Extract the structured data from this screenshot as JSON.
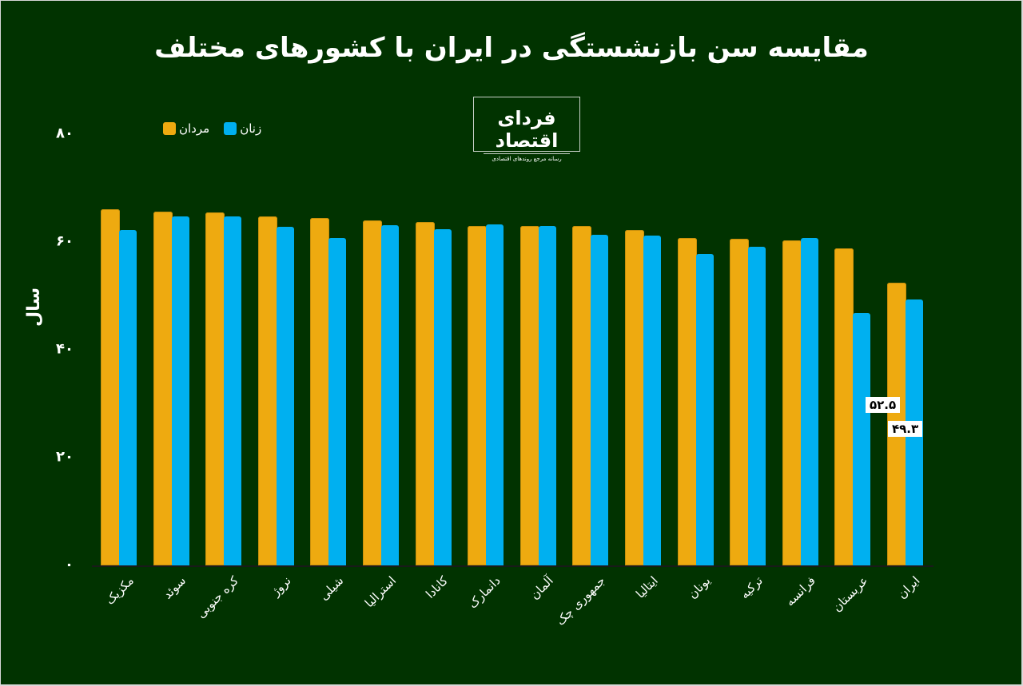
{
  "title": "مقایسه سن بازنشستگی در ایران با کشورهای مختلف",
  "logo": {
    "main": "فردای اقتصاد",
    "sub": "رسانه مرجع روندهای اقتصادی"
  },
  "colors": {
    "background": "#013300",
    "men": "#eeaa10",
    "women": "#00b0f0",
    "text": "#ffffff"
  },
  "legend": [
    {
      "label": "مردان",
      "color": "#eeaa10"
    },
    {
      "label": "زنان",
      "color": "#00b0f0"
    }
  ],
  "y_axis": {
    "label": "سال",
    "ticks": [
      "۰",
      "۲۰",
      "۴۰",
      "۶۰",
      "۸۰"
    ]
  },
  "annotations": [
    {
      "series": "مردان",
      "category": "ایران",
      "text": "۵۲.۵"
    },
    {
      "series": "زنان",
      "category": "ایران",
      "text": "۴۹.۳"
    }
  ],
  "chart_data": {
    "type": "bar",
    "title": "مقایسه سن بازنشستگی در ایران با کشورهای مختلف",
    "xlabel": "",
    "ylabel": "سال",
    "ylim": [
      0,
      80
    ],
    "yticks": [
      0,
      20,
      40,
      60,
      80
    ],
    "grid": false,
    "legend_position": "top-left",
    "categories": [
      "مکزیک",
      "سوئد",
      "کره جنوبی",
      "نروژ",
      "شیلی",
      "استرالیا",
      "کانادا",
      "دانمارک",
      "آلمان",
      "جمهوری چک",
      "ایتالیا",
      "یونان",
      "ترکیه",
      "فرانسه",
      "عربستان",
      "ایران"
    ],
    "series": [
      {
        "name": "مردان",
        "color": "#eeaa10",
        "values": [
          66.1,
          65.6,
          65.5,
          64.7,
          64.4,
          64.0,
          63.7,
          63.0,
          63.0,
          63.0,
          62.2,
          60.7,
          60.6,
          60.3,
          58.8,
          52.5
        ]
      },
      {
        "name": "زنان",
        "color": "#00b0f0",
        "values": [
          62.2,
          64.7,
          64.7,
          62.8,
          60.7,
          63.1,
          62.4,
          63.3,
          63.0,
          61.3,
          61.2,
          57.8,
          59.1,
          60.7,
          46.8,
          49.3
        ]
      }
    ],
    "data_labels": {
      "ایران": {
        "مردان": "۵۲.۵",
        "زنان": "۴۹.۳"
      }
    }
  }
}
